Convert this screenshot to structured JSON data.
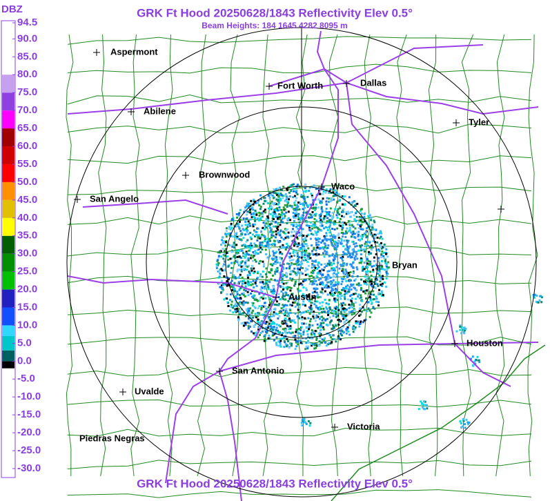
{
  "header": {
    "title": "GRK Ft Hood 20250628/1843 Reflectivity Elev 0.5°",
    "subtitle": "Beam Heights: 184 1645 4282 8095 m",
    "footer_title": "GRK Ft Hood 20250628/1843 Reflectivity Elev 0.5°"
  },
  "legend": {
    "unit": "DBZ",
    "ticks": [
      94.5,
      {
        "value": 90,
        "label": "90.0"
      },
      {
        "value": 85,
        "label": "85.0"
      },
      {
        "value": 80,
        "label": "80.0"
      },
      {
        "value": 75,
        "label": "75.0"
      },
      {
        "value": 70,
        "label": "70.0"
      },
      {
        "value": 65,
        "label": "65.0"
      },
      {
        "value": 60,
        "label": "60.0"
      },
      {
        "value": 55,
        "label": "55.0"
      },
      {
        "value": 50,
        "label": "50.0"
      },
      {
        "value": 45,
        "label": "45.0"
      },
      {
        "value": 40,
        "label": "40.0"
      },
      {
        "value": 35,
        "label": "35.0"
      },
      {
        "value": 30,
        "label": "30.0"
      },
      {
        "value": 25,
        "label": "25.0"
      },
      {
        "value": 20,
        "label": "20.0"
      },
      {
        "value": 15,
        "label": "15.0"
      },
      {
        "value": 10,
        "label": "10.0"
      },
      {
        "value": 5,
        "label": "5.0"
      },
      {
        "value": 0,
        "label": "0.0"
      },
      {
        "value": -5,
        "label": "-5.0"
      },
      {
        "value": -10,
        "label": "-10.0"
      },
      {
        "value": -15,
        "label": "-15.0"
      },
      {
        "value": -20,
        "label": "-20.0"
      },
      {
        "value": -25,
        "label": "-25.0"
      },
      {
        "value": -30,
        "label": "-30.0"
      }
    ]
  },
  "cities": [
    "Aspermont",
    "Fort Worth",
    "Dallas",
    "Abilene",
    "Tyler",
    "Brownwood",
    "Waco",
    "San Angelo",
    "Bryan",
    "Austin",
    "Houston",
    "San Antonio",
    "Uvalde",
    "Victoria",
    "Piedras Negras"
  ]
}
